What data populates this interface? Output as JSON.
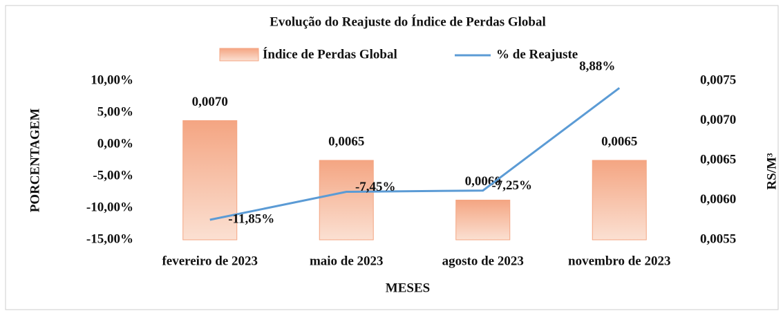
{
  "chart_data": {
    "type": "bar_line",
    "title": "Evolução do Reajuste do Índice de Perdas Global",
    "categories": [
      "fevereiro de 2023",
      "maio de 2023",
      "agosto de 2023",
      "novembro de 2023"
    ],
    "series": [
      {
        "name": "Índice de Perdas Global",
        "type": "bar",
        "axis": "y2",
        "color": "#f4a582",
        "values": [
          0.007,
          0.0065,
          0.006,
          0.0065
        ],
        "value_labels": [
          "0,0070",
          "0,0065",
          "0,0060",
          "0,0065"
        ]
      },
      {
        "name": "% de Reajuste",
        "type": "line",
        "color": "#5b9bd5",
        "values": [
          -11.85,
          -7.45,
          -7.25,
          8.88
        ],
        "value_labels": [
          "-11,85%",
          "-7,45%",
          "-7,25%",
          "8,88%"
        ]
      }
    ],
    "ylabel": "PORCENTAGEM",
    "y2label": "RS/M³",
    "xlabel": "MESES",
    "ylim": [
      -15,
      10
    ],
    "yticks": [
      {
        "value": -15,
        "label": "-15,00%"
      },
      {
        "value": -10,
        "label": "-10,00%"
      },
      {
        "value": -5,
        "label": "-5,00%"
      },
      {
        "value": 0,
        "label": "0,00%"
      },
      {
        "value": 5,
        "label": "5,00%"
      },
      {
        "value": 10,
        "label": "10,00%"
      }
    ],
    "y2lim": [
      0.0055,
      0.0075
    ],
    "y2ticks": [
      {
        "value": 0.0055,
        "label": "0,0055"
      },
      {
        "value": 0.006,
        "label": "0,0060"
      },
      {
        "value": 0.0065,
        "label": "0,0065"
      },
      {
        "value": 0.007,
        "label": "0,0070"
      },
      {
        "value": 0.0075,
        "label": "0,0075"
      }
    ],
    "legend": "top"
  }
}
